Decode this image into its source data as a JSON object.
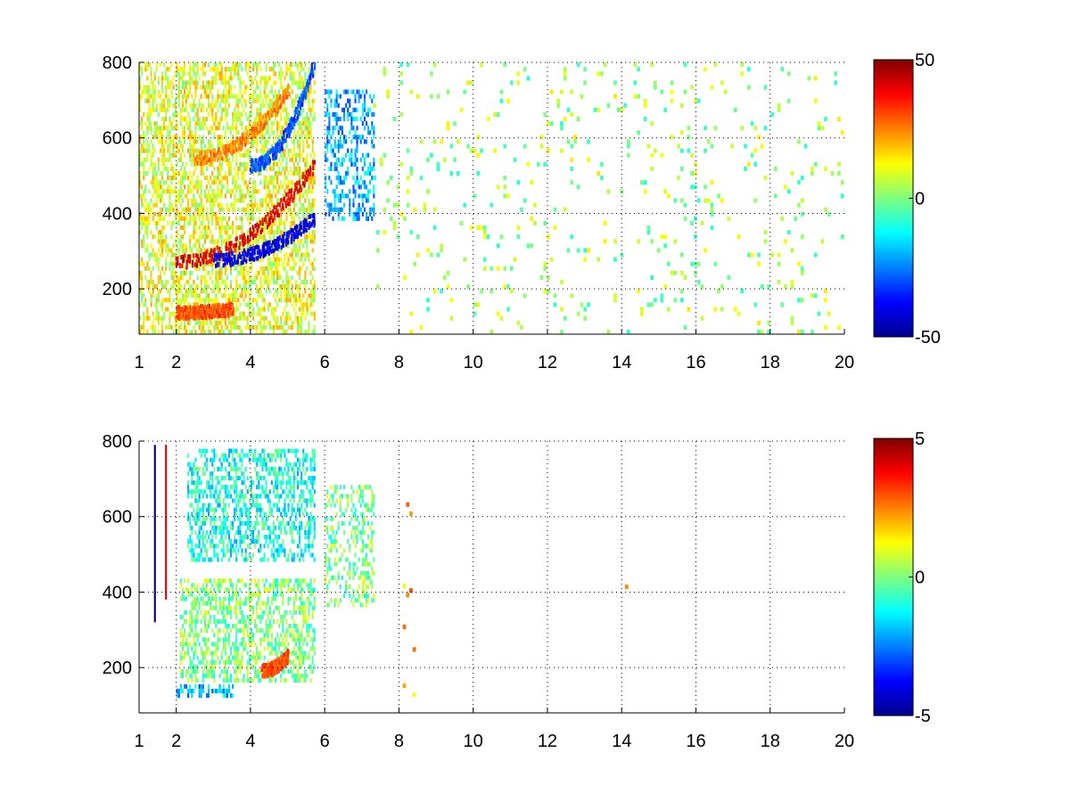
{
  "chart_data": [
    {
      "type": "heatmap",
      "title": "",
      "xlabel": "",
      "ylabel": "",
      "xlim": [
        1,
        20
      ],
      "ylim": [
        80,
        800
      ],
      "x_ticks": [
        1,
        2,
        4,
        6,
        8,
        10,
        12,
        14,
        16,
        18,
        20
      ],
      "x_tick_labels": [
        "1",
        "2",
        "4",
        "6",
        "8",
        "10",
        "12",
        "14",
        "16",
        "18",
        "20"
      ],
      "y_ticks": [
        200,
        400,
        600,
        800
      ],
      "y_tick_labels": [
        "200",
        "400",
        "600",
        "800"
      ],
      "grid": true,
      "colormap": "jet",
      "colorbar": {
        "min": -50,
        "max": 50,
        "ticks": [
          -50,
          0,
          50
        ],
        "tick_labels": [
          "-50",
          "0",
          "50"
        ]
      },
      "features": [
        {
          "x_range": [
            1.0,
            5.7
          ],
          "y_range": [
            80,
            800
          ],
          "value": 10,
          "kind": "dense"
        },
        {
          "x_start": 2.0,
          "x_end": 5.7,
          "y_start": 265,
          "y_end": 520,
          "value": 40,
          "kind": "curve"
        },
        {
          "x_start": 3.0,
          "x_end": 5.7,
          "y_start": 270,
          "y_end": 380,
          "value": -40,
          "kind": "curve"
        },
        {
          "x_start": 2.5,
          "x_end": 5.0,
          "y_start": 540,
          "y_end": 720,
          "value": 25,
          "kind": "curve"
        },
        {
          "x_start": 4.0,
          "x_end": 5.7,
          "y_start": 520,
          "y_end": 790,
          "value": -30,
          "kind": "curve"
        },
        {
          "x_start": 2.0,
          "x_end": 3.5,
          "y_start": 130,
          "y_end": 140,
          "value": 30,
          "kind": "curve"
        },
        {
          "x_range": [
            6.0,
            7.3
          ],
          "y_range": [
            380,
            720
          ],
          "value": -20,
          "kind": "patch"
        },
        {
          "x_range": [
            7.3,
            20
          ],
          "y_range": [
            80,
            800
          ],
          "value": 3,
          "kind": "sparse"
        }
      ]
    },
    {
      "type": "heatmap",
      "title": "",
      "xlabel": "",
      "ylabel": "",
      "xlim": [
        1,
        20
      ],
      "ylim": [
        80,
        800
      ],
      "x_ticks": [
        1,
        2,
        4,
        6,
        8,
        10,
        12,
        14,
        16,
        18,
        20
      ],
      "x_tick_labels": [
        "1",
        "2",
        "4",
        "6",
        "8",
        "10",
        "12",
        "14",
        "16",
        "18",
        "20"
      ],
      "y_ticks": [
        200,
        400,
        600,
        800
      ],
      "y_tick_labels": [
        "200",
        "400",
        "600",
        "800"
      ],
      "grid": true,
      "colormap": "jet",
      "colorbar": {
        "min": -5,
        "max": 5,
        "ticks": [
          -5,
          0,
          5
        ],
        "tick_labels": [
          "-5",
          "0",
          "5"
        ]
      },
      "features": [
        {
          "x_range": [
            2.1,
            5.7
          ],
          "y_range": [
            160,
            430
          ],
          "value": 0,
          "kind": "blob"
        },
        {
          "x_range": [
            2.3,
            5.7
          ],
          "y_range": [
            480,
            780
          ],
          "value": -1,
          "kind": "blob"
        },
        {
          "x_range": [
            2.0,
            3.5
          ],
          "y_range": [
            120,
            155
          ],
          "value": -2,
          "kind": "blob"
        },
        {
          "x_range": [
            6.0,
            7.3
          ],
          "y_range": [
            360,
            680
          ],
          "value": 0,
          "kind": "patch"
        },
        {
          "x_start": 4.3,
          "x_end": 5.0,
          "y_start": 185,
          "y_end": 225,
          "value": 3,
          "kind": "curve"
        },
        {
          "x_range": [
            1.4,
            1.45
          ],
          "y_range": [
            320,
            790
          ],
          "value": -5,
          "kind": "line"
        },
        {
          "x_range": [
            1.7,
            1.75
          ],
          "y_range": [
            380,
            790
          ],
          "value": 4,
          "kind": "line"
        },
        {
          "x_range": [
            8.1,
            8.4
          ],
          "y_range": [
            110,
            670
          ],
          "value": 2,
          "kind": "sparse"
        },
        {
          "x_range": [
            14.0,
            14.1
          ],
          "y_range": [
            360,
            510
          ],
          "value": 2,
          "kind": "sparse"
        }
      ]
    }
  ]
}
